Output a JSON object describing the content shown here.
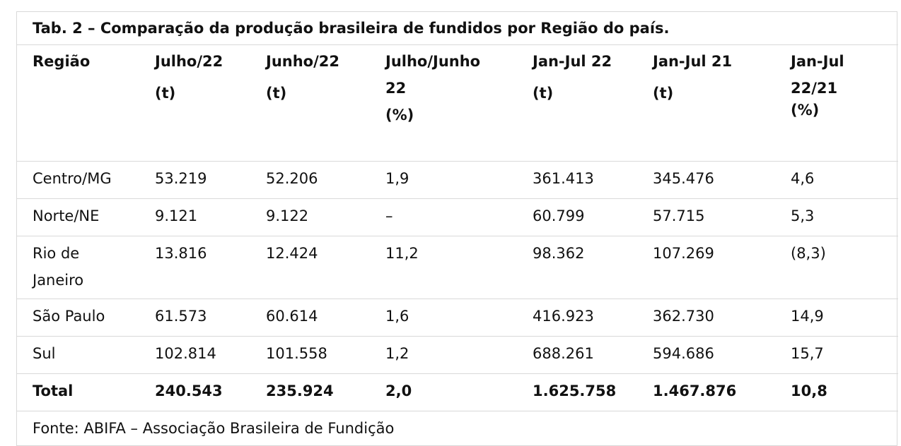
{
  "title": "Tab. 2 – Comparação da produção brasileira de fundidos por Região do país.",
  "headers": [
    {
      "lines": [
        "Região"
      ]
    },
    {
      "lines": [
        "Julho/22",
        "(t)"
      ]
    },
    {
      "lines": [
        "Junho/22",
        "(t)"
      ]
    },
    {
      "lines": [
        "Julho/Junho",
        "22",
        "(%)"
      ]
    },
    {
      "lines": [
        "Jan-Jul 22",
        "(t)"
      ]
    },
    {
      "lines": [
        "Jan-Jul 21",
        "(t)"
      ]
    },
    {
      "lines": [
        "Jan-Jul",
        "22/21",
        "(%)"
      ]
    }
  ],
  "rows": [
    [
      "Centro/MG",
      "53.219",
      "52.206",
      "1,9",
      "361.413",
      "345.476",
      "4,6"
    ],
    [
      "Norte/NE",
      "9.121",
      "9.122",
      "–",
      "60.799",
      "57.715",
      "5,3"
    ],
    [
      "Rio de Janeiro",
      "13.816",
      "12.424",
      "11,2",
      "98.362",
      "107.269",
      "(8,3)"
    ],
    [
      "São Paulo",
      "61.573",
      "60.614",
      "1,6",
      "416.923",
      "362.730",
      "14,9"
    ],
    [
      "Sul",
      "102.814",
      "101.558",
      "1,2",
      "688.261",
      "594.686",
      "15,7"
    ]
  ],
  "total": [
    "Total",
    "240.543",
    "235.924",
    "2,0",
    "1.625.758",
    "1.467.876",
    "10,8"
  ],
  "source": "Fonte: ABIFA – Associação Brasileira de Fundição"
}
